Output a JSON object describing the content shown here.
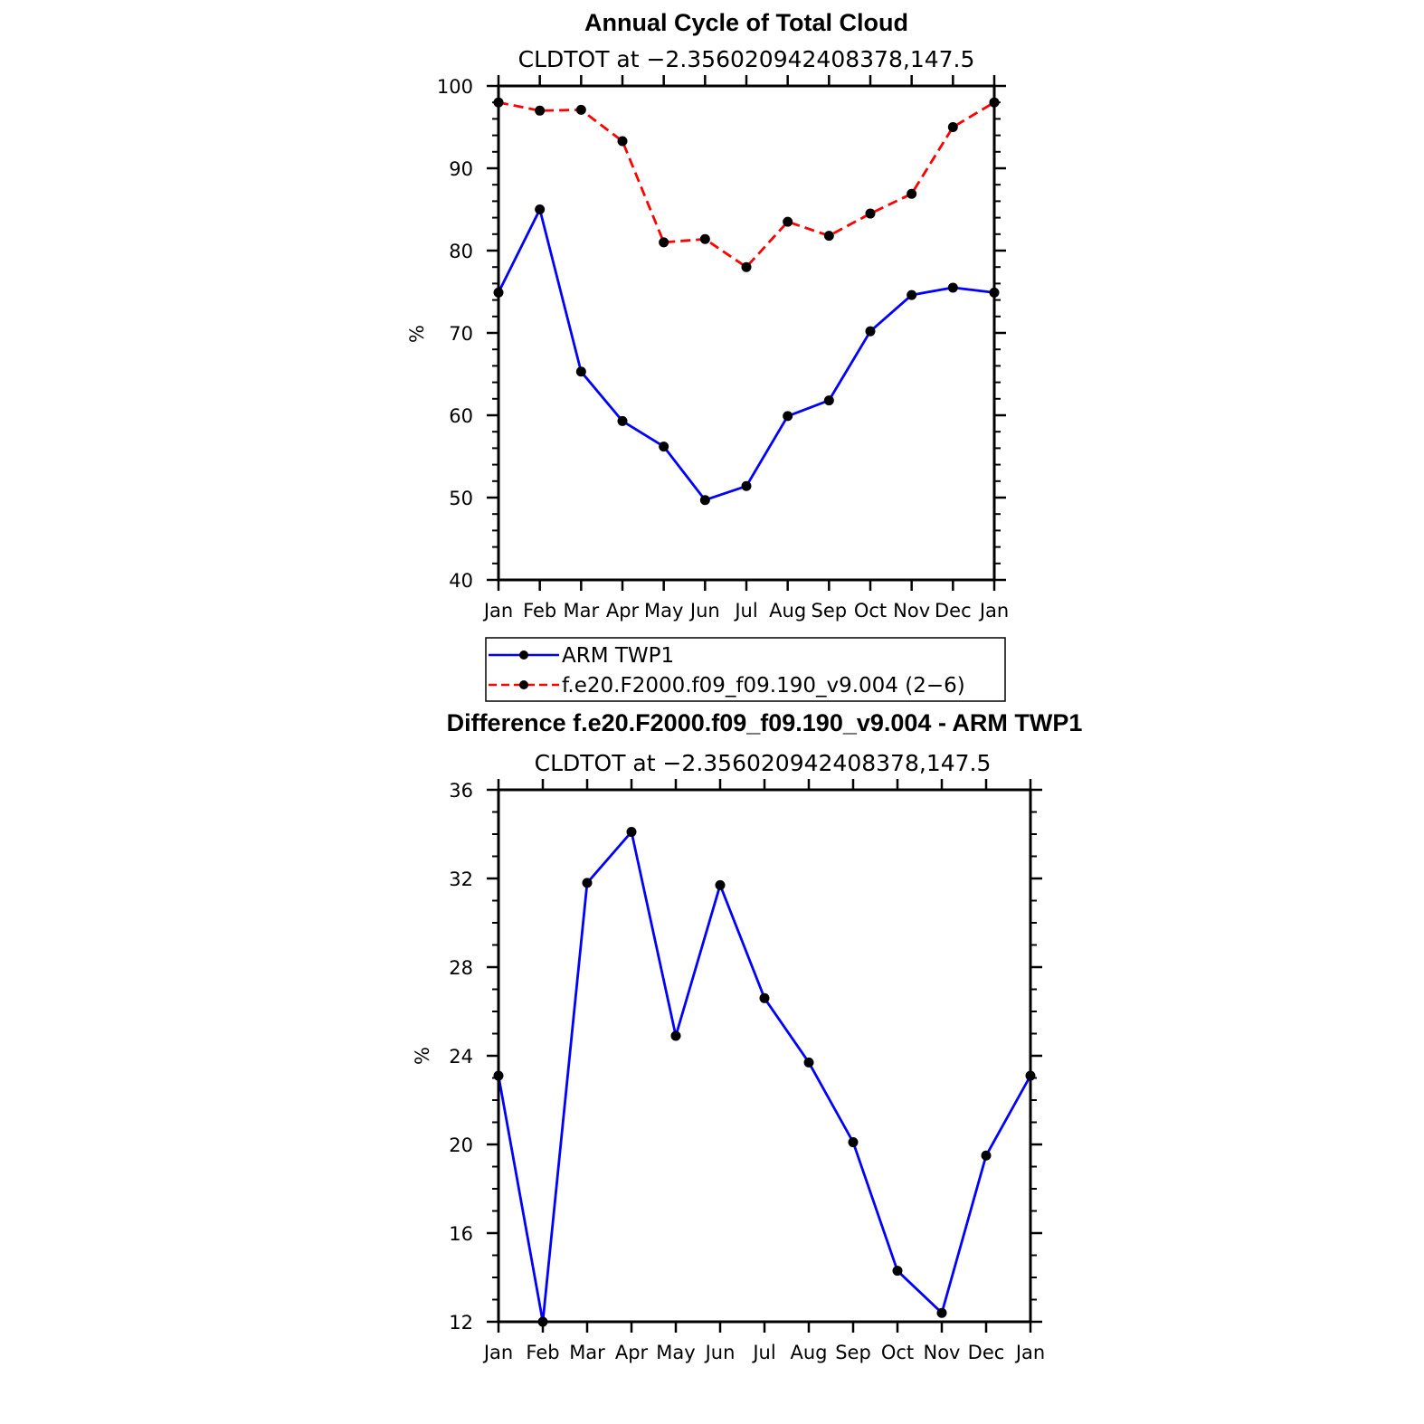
{
  "chart_data": [
    {
      "type": "line",
      "title": "Annual Cycle of Total Cloud",
      "subtitle": "CLDTOT at −2.356020942408378,147.5",
      "ylabel": "%",
      "ylim": [
        40,
        100
      ],
      "yticks": [
        40,
        50,
        60,
        70,
        80,
        90,
        100
      ],
      "categories": [
        "Jan",
        "Feb",
        "Mar",
        "Apr",
        "May",
        "Jun",
        "Jul",
        "Aug",
        "Sep",
        "Oct",
        "Nov",
        "Dec",
        "Jan"
      ],
      "series": [
        {
          "name": "ARM TWP1",
          "color": "#0000ff",
          "dash": "solid",
          "values": [
            74.9,
            85.0,
            65.3,
            59.3,
            56.2,
            49.7,
            51.4,
            59.9,
            61.8,
            70.2,
            74.6,
            75.5,
            74.9
          ]
        },
        {
          "name": "f.e20.F2000.f09_f09.190_v9.004 (2−6)",
          "color": "#ff0000",
          "dash": "dashed",
          "values": [
            98.0,
            97.0,
            97.1,
            93.3,
            81.0,
            81.4,
            78.0,
            83.5,
            81.8,
            84.5,
            86.9,
            95.0,
            98.0
          ]
        }
      ],
      "legend": "below",
      "grid": false
    },
    {
      "type": "line",
      "title": "Difference f.e20.F2000.f09_f09.190_v9.004 - ARM TWP1",
      "subtitle": "CLDTOT at −2.356020942408378,147.5",
      "ylabel": "%",
      "ylim": [
        12,
        36
      ],
      "yticks": [
        12,
        16,
        20,
        24,
        28,
        32,
        36
      ],
      "categories": [
        "Jan",
        "Feb",
        "Mar",
        "Apr",
        "May",
        "Jun",
        "Jul",
        "Aug",
        "Sep",
        "Oct",
        "Nov",
        "Dec",
        "Jan"
      ],
      "series": [
        {
          "color": "#0000ff",
          "dash": "solid",
          "values": [
            23.1,
            12.0,
            31.8,
            34.1,
            24.9,
            31.7,
            26.6,
            23.7,
            20.1,
            14.3,
            12.4,
            19.5,
            23.1
          ]
        }
      ],
      "grid": false
    }
  ]
}
